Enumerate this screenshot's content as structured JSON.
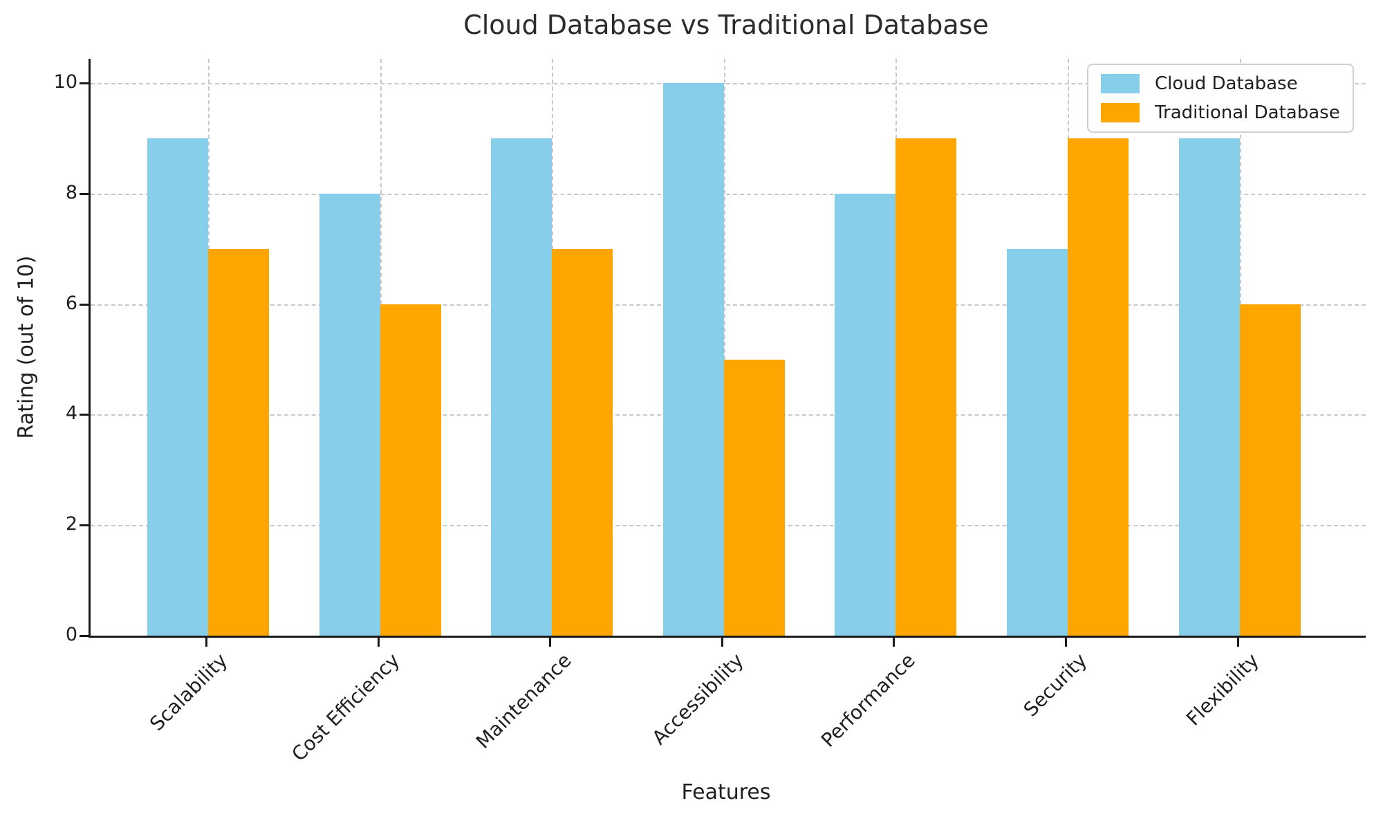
{
  "chart_data": {
    "type": "bar",
    "title": "Cloud Database vs Traditional Database",
    "xlabel": "Features",
    "ylabel": "Rating (out of 10)",
    "categories": [
      "Scalability",
      "Cost Efficiency",
      "Maintenance",
      "Accessibility",
      "Performance",
      "Security",
      "Flexibility"
    ],
    "series": [
      {
        "name": "Cloud Database",
        "color": "#87CEEB",
        "values": [
          9,
          8,
          9,
          10,
          8,
          7,
          9
        ]
      },
      {
        "name": "Traditional Database",
        "color": "#FFA500",
        "values": [
          7,
          6,
          7,
          5,
          9,
          9,
          6
        ]
      }
    ],
    "ylim": [
      0,
      10
    ],
    "yticks": [
      0,
      2,
      4,
      6,
      8,
      10
    ],
    "grid": true,
    "grid_style": "dashed",
    "legend_position": "upper right",
    "xtick_rotation": 45
  },
  "style": {
    "grid_color": "#c9c9c9",
    "spine_color": "#1a1a1a",
    "text_color": "#1f1f1f",
    "background": "#ffffff"
  }
}
